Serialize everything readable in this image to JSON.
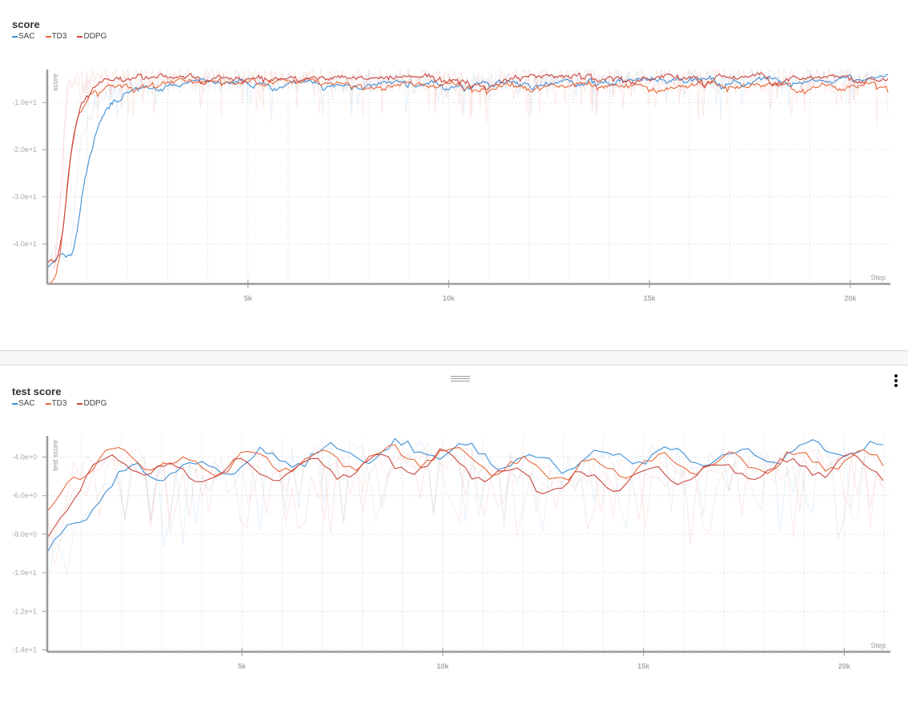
{
  "palette": {
    "SAC": "#3c8fd8",
    "TD3": "#e8683a",
    "DDPG": "#c9473f",
    "axis": "#9b9b9b",
    "grid": "#e6e6e6"
  },
  "panels": [
    {
      "title": "score",
      "legend": [
        {
          "label": "SAC",
          "color": "#3c8fd8"
        },
        {
          "label": "TD3",
          "color": "#e8683a"
        },
        {
          "label": "DDPG",
          "color": "#c9473f"
        }
      ],
      "y_axis_title": "score",
      "x_axis_title": "Step"
    },
    {
      "title": "test score",
      "legend": [
        {
          "label": "SAC",
          "color": "#3c8fd8"
        },
        {
          "label": "TD3",
          "color": "#e8683a"
        },
        {
          "label": "DDPG",
          "color": "#c9473f"
        }
      ],
      "y_axis_title": "test score",
      "x_axis_title": "Step"
    }
  ],
  "controls": {
    "drag_handle": "resize-handle",
    "menu": "more-options"
  },
  "chart_data": [
    {
      "type": "line",
      "title": "score",
      "xlabel": "Step",
      "ylabel": "score",
      "xlim": [
        0,
        21000
      ],
      "ylim": [
        -48.5,
        -3
      ],
      "x_ticks": [
        5000,
        10000,
        15000,
        20000
      ],
      "x_tick_labels": [
        "5k",
        "10k",
        "15k",
        "20k"
      ],
      "y_ticks": [
        -10,
        -20,
        -30,
        -40
      ],
      "y_tick_labels": [
        "-1.0e+1",
        "-2.0e+1",
        "-3.0e+1",
        "-4.0e+1"
      ],
      "grid": true,
      "legend_position": "top-left",
      "series": [
        {
          "name": "SAC",
          "x": [
            0,
            200,
            400,
            500,
            600,
            700,
            800,
            1000,
            1200,
            1500,
            2000,
            3000,
            5000,
            8000,
            10000,
            12000,
            15000,
            18000,
            20000,
            21000
          ],
          "values": [
            -43,
            -41.5,
            -43,
            -43,
            -40,
            -30,
            -20,
            -14,
            -10,
            -8,
            -7,
            -6,
            -5.5,
            -6,
            -5.5,
            -5.5,
            -5,
            -5,
            -5,
            -4.5
          ]
        },
        {
          "name": "TD3",
          "x": [
            0,
            150,
            250,
            300,
            400,
            500,
            600,
            800,
            1000,
            1500,
            2000,
            3000,
            5000,
            8000,
            10000,
            12000,
            15000,
            18000,
            20000,
            21000
          ],
          "values": [
            -48,
            -46,
            -38,
            -32,
            -20,
            -10,
            -7,
            -6,
            -6,
            -6,
            -6,
            -5.5,
            -5,
            -6,
            -6.5,
            -5.5,
            -6.5,
            -6,
            -6,
            -6
          ]
        },
        {
          "name": "DDPG",
          "x": [
            0,
            150,
            250,
            300,
            400,
            500,
            600,
            800,
            1000,
            1500,
            2000,
            3000,
            5000,
            8000,
            10000,
            12000,
            15000,
            18000,
            20000,
            21000
          ],
          "values": [
            -42,
            -44,
            -42,
            -35,
            -18,
            -8,
            -5,
            -4.5,
            -4.5,
            -4.5,
            -4,
            -4.5,
            -4.5,
            -4.5,
            -5,
            -4.5,
            -4.5,
            -4.5,
            -4.5,
            -4.5
          ]
        }
      ]
    },
    {
      "type": "line",
      "title": "test score",
      "xlabel": "Step",
      "ylabel": "test score",
      "xlim": [
        150,
        21150
      ],
      "ylim": [
        -14.1,
        -2.9
      ],
      "x_ticks": [
        5000,
        10000,
        15000,
        20000
      ],
      "x_tick_labels": [
        "5k",
        "10k",
        "15k",
        "20k"
      ],
      "y_ticks": [
        -4,
        -6,
        -8,
        -10,
        -12,
        -14
      ],
      "y_tick_labels": [
        "-4.0e+0",
        "-6.0e+0",
        "-8.0e+0",
        "-1.0e+1",
        "-1.2e+1",
        "-1.4e+1"
      ],
      "grid": true,
      "legend_position": "top-left",
      "series": [
        {
          "name": "SAC",
          "x": [
            150,
            800,
            1500,
            2500,
            3500,
            5000,
            7500,
            10000,
            12500,
            15000,
            17500,
            20000,
            21000
          ],
          "values": [
            -9.2,
            -7.7,
            -5.8,
            -4.6,
            -4.8,
            -4.2,
            -3.8,
            -3.6,
            -4.4,
            -3.9,
            -4.1,
            -3.5,
            -3.9
          ]
        },
        {
          "name": "TD3",
          "x": [
            150,
            800,
            1500,
            2500,
            3500,
            5000,
            7500,
            10000,
            12500,
            15000,
            17500,
            20000,
            21000
          ],
          "values": [
            -7.3,
            -4.8,
            -4.1,
            -4.0,
            -4.6,
            -4.2,
            -4.1,
            -3.8,
            -4.8,
            -4.4,
            -4.3,
            -4.1,
            -4.3
          ]
        },
        {
          "name": "DDPG",
          "x": [
            150,
            800,
            1500,
            2500,
            3500,
            5000,
            7500,
            10000,
            12500,
            15000,
            17500,
            20000,
            21000
          ],
          "values": [
            -8.4,
            -5.6,
            -4.4,
            -4.3,
            -5.0,
            -4.6,
            -4.6,
            -4.2,
            -5.4,
            -5.0,
            -4.7,
            -4.4,
            -4.6
          ]
        }
      ]
    }
  ]
}
